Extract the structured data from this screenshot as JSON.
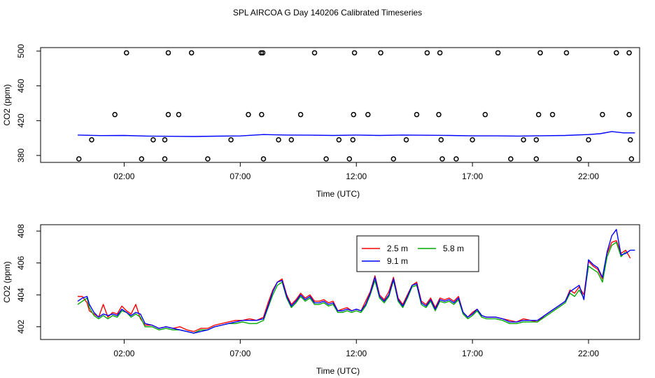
{
  "figure": {
    "title": "SPL AIRCOA G  Day 140206  Calibrated Timeseries"
  },
  "chart_data": [
    {
      "type": "scatter+line",
      "xlabel": "Time (UTC)",
      "ylabel": "CO2 (ppm)",
      "xlim": [
        -1.6,
        24.2
      ],
      "ylim": [
        372,
        504
      ],
      "x_ticks": [
        2,
        7,
        12,
        17,
        22
      ],
      "x_tick_labels": [
        "02:00",
        "07:00",
        "12:00",
        "17:00",
        "22:00"
      ],
      "y_ticks": [
        380,
        420,
        460,
        500
      ],
      "y_tick_labels": [
        "380",
        "420",
        "460",
        "500"
      ],
      "grid": false,
      "legend": null,
      "points": {
        "name": "",
        "x": [
          0.05,
          0.6,
          1.6,
          2.1,
          2.75,
          3.25,
          3.75,
          3.75,
          3.9,
          3.9,
          4.35,
          4.9,
          5.6,
          6.6,
          7.35,
          7.9,
          7.92,
          7.97,
          8.0,
          8.65,
          9.2,
          9.6,
          10.2,
          10.7,
          11.25,
          11.7,
          11.85,
          11.88,
          11.92,
          12.5,
          13.05,
          13.6,
          14.15,
          14.6,
          15.05,
          15.55,
          15.6,
          15.65,
          15.7,
          16.3,
          17.0,
          17.55,
          18.1,
          18.65,
          19.2,
          19.75,
          19.75,
          19.85,
          19.92,
          20.45,
          21.05,
          21.6,
          22.0,
          22.6,
          23.2,
          23.75,
          23.75,
          23.8,
          23.85
        ],
        "y": [
          376,
          398,
          427,
          498,
          376,
          398,
          376,
          398,
          427,
          498,
          427,
          498,
          376,
          398,
          427,
          498,
          427,
          498,
          376,
          398,
          398,
          427,
          498,
          376,
          398,
          376,
          398,
          427,
          498,
          427,
          498,
          376,
          398,
          427,
          498,
          427,
          498,
          398,
          376,
          376,
          398,
          427,
          498,
          376,
          398,
          376,
          398,
          427,
          498,
          427,
          498,
          376,
          398,
          427,
          498,
          498,
          427,
          398,
          376
        ]
      },
      "series": [
        {
          "name": "",
          "color": "#0000ff",
          "x": [
            0,
            1,
            2,
            3,
            4,
            5,
            6,
            7,
            8,
            9,
            10,
            11,
            12,
            13,
            14,
            15,
            16,
            17,
            18,
            19,
            20,
            21,
            22,
            22.5,
            23,
            23.5,
            24
          ],
          "y": [
            403.5,
            402.8,
            403.0,
            402.3,
            402.0,
            401.8,
            402.2,
            402.4,
            404.0,
            403.5,
            403.3,
            403.0,
            403.5,
            403.0,
            403.5,
            403.2,
            403.0,
            402.5,
            402.5,
            402.3,
            402.7,
            403.0,
            404.0,
            405.0,
            407.5,
            406.0,
            406.0
          ]
        }
      ]
    },
    {
      "type": "line",
      "xlabel": "Time (UTC)",
      "ylabel": "CO2 (ppm)",
      "xlim": [
        -1.6,
        24.2
      ],
      "ylim": [
        401.2,
        408.4
      ],
      "x_ticks": [
        2,
        7,
        12,
        17,
        22
      ],
      "x_tick_labels": [
        "02:00",
        "07:00",
        "12:00",
        "17:00",
        "22:00"
      ],
      "y_ticks": [
        402,
        404,
        406,
        408
      ],
      "y_tick_labels": [
        "402",
        "404",
        "406",
        "408"
      ],
      "grid": false,
      "legend": "top-right",
      "series": [
        {
          "name": "2.5 m",
          "color": "#ff0000",
          "x": [
            0,
            0.2,
            0.4,
            0.5,
            0.7,
            0.9,
            1.1,
            1.3,
            1.5,
            1.7,
            1.9,
            2.1,
            2.3,
            2.5,
            2.7,
            2.9,
            3.2,
            3.5,
            3.8,
            4.1,
            4.4,
            4.7,
            5.0,
            5.3,
            5.6,
            5.9,
            6.2,
            6.5,
            6.8,
            7.1,
            7.4,
            7.7,
            8.0,
            8.2,
            8.4,
            8.6,
            8.8,
            9.0,
            9.2,
            9.4,
            9.6,
            9.8,
            10.0,
            10.2,
            10.4,
            10.6,
            10.8,
            11.0,
            11.2,
            11.4,
            11.6,
            11.8,
            12.0,
            12.2,
            12.4,
            12.6,
            12.8,
            13.0,
            13.2,
            13.4,
            13.6,
            13.8,
            14.0,
            14.2,
            14.4,
            14.6,
            14.8,
            15.0,
            15.2,
            15.4,
            15.6,
            15.8,
            16.0,
            16.2,
            16.4,
            16.6,
            16.8,
            17.0,
            17.2,
            17.4,
            17.6,
            17.8,
            18.0,
            18.3,
            18.6,
            18.9,
            19.2,
            19.5,
            19.8,
            20.1,
            20.4,
            20.7,
            21.0,
            21.2,
            21.4,
            21.6,
            21.8,
            22.0,
            22.2,
            22.4,
            22.6,
            22.8,
            23.0,
            23.2,
            23.4,
            23.6,
            23.8
          ],
          "y": [
            403.9,
            403.9,
            403.5,
            403.0,
            402.8,
            402.6,
            403.4,
            402.6,
            402.9,
            402.8,
            403.3,
            403.0,
            402.8,
            403.4,
            402.5,
            402.1,
            402.1,
            401.9,
            402.0,
            401.9,
            402.0,
            401.8,
            401.7,
            401.9,
            401.9,
            402.1,
            402.2,
            402.3,
            402.4,
            402.4,
            402.5,
            402.4,
            402.6,
            403.5,
            404.3,
            404.8,
            405.0,
            404.0,
            403.4,
            403.7,
            404.1,
            403.8,
            404.0,
            403.6,
            403.6,
            403.7,
            403.5,
            403.6,
            403.0,
            403.1,
            403.2,
            403.0,
            403.1,
            403.0,
            403.6,
            404.2,
            405.2,
            404.0,
            403.7,
            404.2,
            405.1,
            403.8,
            403.4,
            404.0,
            404.6,
            404.8,
            403.6,
            403.4,
            403.8,
            403.2,
            403.8,
            403.7,
            403.8,
            403.6,
            403.9,
            402.9,
            402.6,
            402.9,
            403.1,
            402.7,
            402.6,
            402.6,
            402.6,
            402.5,
            402.4,
            402.3,
            402.5,
            402.4,
            402.3,
            402.7,
            403.0,
            403.3,
            403.6,
            404.3,
            404.1,
            404.5,
            404.0,
            406.1,
            405.8,
            405.6,
            405.0,
            406.6,
            407.3,
            407.4,
            406.6,
            406.8,
            406.3
          ]
        },
        {
          "name": "5.8 m",
          "color": "#00aa00",
          "x": [
            0,
            0.2,
            0.4,
            0.5,
            0.7,
            0.9,
            1.1,
            1.3,
            1.5,
            1.7,
            1.9,
            2.1,
            2.3,
            2.5,
            2.7,
            2.9,
            3.2,
            3.5,
            3.8,
            4.1,
            4.4,
            4.7,
            5.0,
            5.3,
            5.6,
            5.9,
            6.2,
            6.5,
            6.8,
            7.1,
            7.4,
            7.7,
            8.0,
            8.2,
            8.4,
            8.6,
            8.8,
            9.0,
            9.2,
            9.4,
            9.6,
            9.8,
            10.0,
            10.2,
            10.4,
            10.6,
            10.8,
            11.0,
            11.2,
            11.4,
            11.6,
            11.8,
            12.0,
            12.2,
            12.4,
            12.6,
            12.8,
            13.0,
            13.2,
            13.4,
            13.6,
            13.8,
            14.0,
            14.2,
            14.4,
            14.6,
            14.8,
            15.0,
            15.2,
            15.4,
            15.6,
            15.8,
            16.0,
            16.2,
            16.4,
            16.6,
            16.8,
            17.0,
            17.2,
            17.4,
            17.6,
            17.8,
            18.0,
            18.3,
            18.6,
            18.9,
            19.2,
            19.5,
            19.8,
            20.1,
            20.4,
            20.7,
            21.0,
            21.2,
            21.4,
            21.6,
            21.8,
            22.0,
            22.2,
            22.4,
            22.6,
            22.8,
            23.0,
            23.2,
            23.4,
            23.6
          ],
          "y": [
            403.4,
            403.6,
            403.8,
            403.2,
            402.7,
            402.5,
            402.7,
            402.5,
            402.7,
            402.6,
            403.0,
            402.9,
            402.6,
            402.8,
            402.6,
            402.0,
            402.0,
            401.8,
            401.9,
            401.8,
            401.8,
            401.7,
            401.6,
            401.8,
            401.8,
            402.0,
            402.1,
            402.2,
            402.2,
            402.3,
            402.2,
            402.2,
            402.4,
            403.2,
            404.0,
            404.6,
            404.8,
            403.8,
            403.2,
            403.5,
            403.9,
            403.6,
            403.8,
            403.4,
            403.4,
            403.5,
            403.3,
            403.4,
            402.9,
            402.9,
            403.0,
            402.9,
            403.0,
            402.9,
            403.3,
            404.0,
            404.9,
            403.8,
            403.5,
            403.9,
            404.9,
            403.6,
            403.2,
            403.8,
            404.5,
            404.6,
            403.4,
            403.2,
            403.6,
            403.0,
            403.6,
            403.5,
            403.6,
            403.4,
            403.7,
            402.8,
            402.5,
            402.7,
            403.0,
            402.6,
            402.5,
            402.5,
            402.5,
            402.4,
            402.2,
            402.2,
            402.3,
            402.3,
            402.3,
            402.6,
            402.9,
            403.2,
            403.5,
            404.1,
            403.9,
            404.3,
            403.8,
            405.8,
            405.6,
            405.4,
            404.8,
            406.4,
            407.1,
            407.3,
            406.4,
            406.7
          ]
        },
        {
          "name": "9.1 m",
          "color": "#0000ff",
          "x": [
            0,
            0.2,
            0.4,
            0.5,
            0.7,
            0.9,
            1.1,
            1.3,
            1.5,
            1.7,
            1.9,
            2.1,
            2.3,
            2.5,
            2.7,
            2.9,
            3.2,
            3.5,
            3.8,
            4.1,
            4.4,
            4.7,
            5.0,
            5.3,
            5.6,
            5.9,
            6.2,
            6.5,
            6.8,
            7.1,
            7.4,
            7.7,
            8.0,
            8.2,
            8.4,
            8.6,
            8.8,
            9.0,
            9.2,
            9.4,
            9.6,
            9.8,
            10.0,
            10.2,
            10.4,
            10.6,
            10.8,
            11.0,
            11.2,
            11.4,
            11.6,
            11.8,
            12.0,
            12.2,
            12.4,
            12.6,
            12.8,
            13.0,
            13.2,
            13.4,
            13.6,
            13.8,
            14.0,
            14.2,
            14.4,
            14.6,
            14.8,
            15.0,
            15.2,
            15.4,
            15.6,
            15.8,
            16.0,
            16.2,
            16.4,
            16.6,
            16.8,
            17.0,
            17.2,
            17.4,
            17.6,
            17.8,
            18.0,
            18.3,
            18.6,
            18.9,
            19.2,
            19.5,
            19.8,
            20.1,
            20.4,
            20.7,
            21.0,
            21.2,
            21.4,
            21.6,
            21.8,
            22.0,
            22.2,
            22.4,
            22.6,
            22.8,
            23.0,
            23.2,
            23.4,
            23.6,
            23.8,
            24.0
          ],
          "y": [
            403.6,
            403.8,
            403.9,
            403.4,
            402.9,
            402.6,
            402.8,
            402.7,
            402.8,
            402.7,
            403.1,
            402.9,
            402.7,
            402.9,
            402.8,
            402.2,
            402.1,
            401.9,
            402.0,
            401.9,
            401.8,
            401.7,
            401.6,
            401.7,
            401.8,
            402.0,
            402.1,
            402.2,
            402.3,
            402.4,
            402.4,
            402.4,
            402.5,
            403.3,
            404.2,
            404.8,
            404.9,
            403.9,
            403.3,
            403.6,
            404.0,
            403.7,
            403.9,
            403.5,
            403.5,
            403.6,
            403.4,
            403.5,
            403.0,
            403.0,
            403.1,
            403.0,
            403.1,
            403.0,
            403.4,
            404.1,
            405.1,
            403.9,
            403.6,
            404.0,
            405.0,
            403.7,
            403.3,
            403.9,
            404.6,
            404.7,
            403.5,
            403.3,
            403.7,
            403.1,
            403.7,
            403.6,
            403.7,
            403.5,
            403.8,
            402.9,
            402.6,
            402.8,
            403.1,
            402.7,
            402.6,
            402.6,
            402.6,
            402.5,
            402.3,
            402.3,
            402.4,
            402.4,
            402.4,
            402.7,
            403.0,
            403.3,
            403.6,
            404.2,
            404.4,
            404.6,
            403.7,
            406.2,
            405.9,
            405.7,
            405.1,
            406.7,
            407.7,
            408.1,
            406.5,
            406.6,
            406.8,
            406.8
          ]
        }
      ]
    }
  ]
}
